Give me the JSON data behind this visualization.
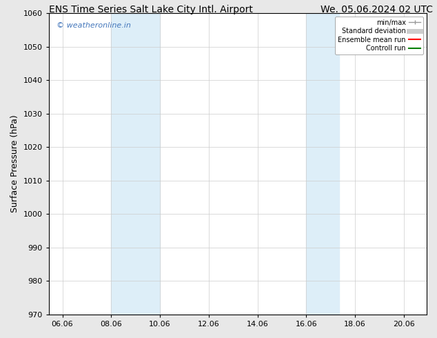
{
  "title_left": "ENS Time Series Salt Lake City Intl. Airport",
  "title_right": "We. 05.06.2024 02 UTC",
  "ylabel": "Surface Pressure (hPa)",
  "ylim": [
    970,
    1060
  ],
  "yticks": [
    970,
    980,
    990,
    1000,
    1010,
    1020,
    1030,
    1040,
    1050,
    1060
  ],
  "xlim_start": 5.5,
  "xlim_end": 21.0,
  "xticks": [
    6.06,
    8.06,
    10.06,
    12.06,
    14.06,
    16.06,
    18.06,
    20.06
  ],
  "xtick_labels": [
    "06.06",
    "08.06",
    "10.06",
    "12.06",
    "14.06",
    "16.06",
    "18.06",
    "20.06"
  ],
  "shaded_regions": [
    {
      "x_start": 8.06,
      "x_end": 10.06,
      "color": "#ddeef8"
    },
    {
      "x_start": 16.06,
      "x_end": 17.4,
      "color": "#ddeef8"
    }
  ],
  "watermark_text": "© weatheronline.in",
  "watermark_color": "#4477bb",
  "bg_color": "#e8e8e8",
  "plot_bg_color": "#ffffff",
  "grid_color": "#cccccc",
  "legend_items": [
    {
      "label": "min/max",
      "color": "#aaaaaa",
      "lw": 1.5
    },
    {
      "label": "Standard deviation",
      "color": "#cccccc",
      "lw": 6
    },
    {
      "label": "Ensemble mean run",
      "color": "#ff0000",
      "lw": 1.5
    },
    {
      "label": "Controll run",
      "color": "#008000",
      "lw": 1.5
    }
  ],
  "title_fontsize": 10,
  "axis_fontsize": 9,
  "tick_fontsize": 8
}
